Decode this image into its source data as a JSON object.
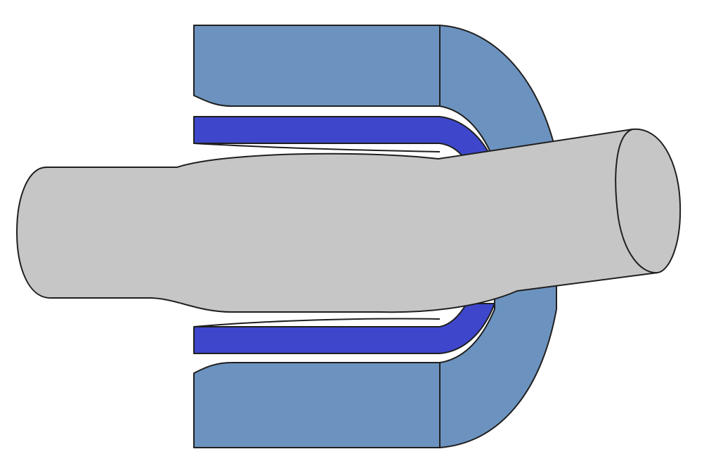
{
  "colors": {
    "background": "#ffffff",
    "housing": "#6c93bf",
    "liner": "#3e47cc",
    "shaft": "#c6c6c6",
    "outline": "#1f1f1f"
  },
  "icons": {
    "housing": "housing-shape",
    "liner": "liner-shape",
    "shaft": "shaft-shape"
  }
}
